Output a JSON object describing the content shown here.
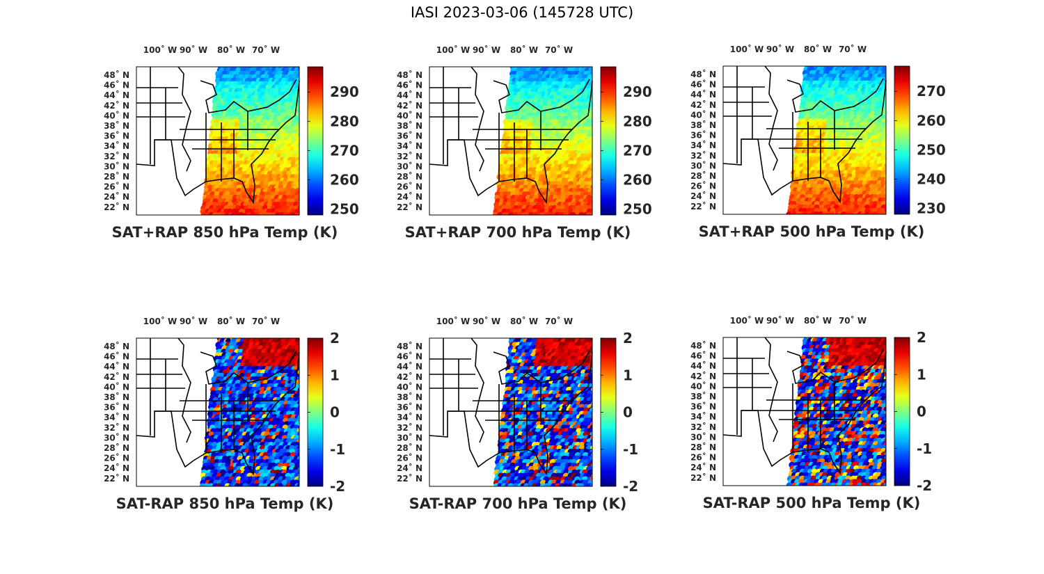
{
  "figure": {
    "title": "IASI 2023-03-06 (145728 UTC)"
  },
  "map": {
    "lon_labels": [
      "100˚ W",
      "90˚ W",
      "80˚ W",
      "70˚ W"
    ],
    "lat_labels": [
      "48˚ N",
      "46˚ N",
      "44˚ N",
      "42˚ N",
      "40˚ N",
      "38˚ N",
      "36˚ N",
      "34˚ N",
      "32˚ N",
      "30˚ N",
      "28˚ N",
      "26˚ N",
      "24˚ N",
      "22˚ N"
    ]
  },
  "panels": [
    {
      "caption": "SAT+RAP 850 hPa Temp (K)",
      "colorbar_ticks": [
        "290",
        "280",
        "270",
        "260",
        "250"
      ],
      "colormap": "jet",
      "kind": "field",
      "warm_bias": 0.62
    },
    {
      "caption": "SAT+RAP 700 hPa Temp (K)",
      "colorbar_ticks": [
        "290",
        "280",
        "270",
        "260",
        "250"
      ],
      "colormap": "jet",
      "kind": "field",
      "warm_bias": 0.58
    },
    {
      "caption": "SAT+RAP 500 hPa Temp (K)",
      "colorbar_ticks": [
        "270",
        "260",
        "250",
        "240",
        "230"
      ],
      "colormap": "jet",
      "kind": "field",
      "warm_bias": 0.6
    },
    {
      "caption": "SAT-RAP 850 hPa Temp (K)",
      "colorbar_ticks": [
        "2",
        "1",
        "0",
        "-1",
        "-2"
      ],
      "colormap": "jet",
      "kind": "diff",
      "warm_bias": 0.15
    },
    {
      "caption": "SAT-RAP 700 hPa Temp (K)",
      "colorbar_ticks": [
        "2",
        "1",
        "0",
        "-1",
        "-2"
      ],
      "colormap": "jet",
      "kind": "diff",
      "warm_bias": 0.25
    },
    {
      "caption": "SAT-RAP 500 hPa Temp (K)",
      "colorbar_ticks": [
        "2",
        "1",
        "0",
        "-1",
        "-2"
      ],
      "colormap": "jet",
      "kind": "diff",
      "warm_bias": 0.35
    }
  ]
}
